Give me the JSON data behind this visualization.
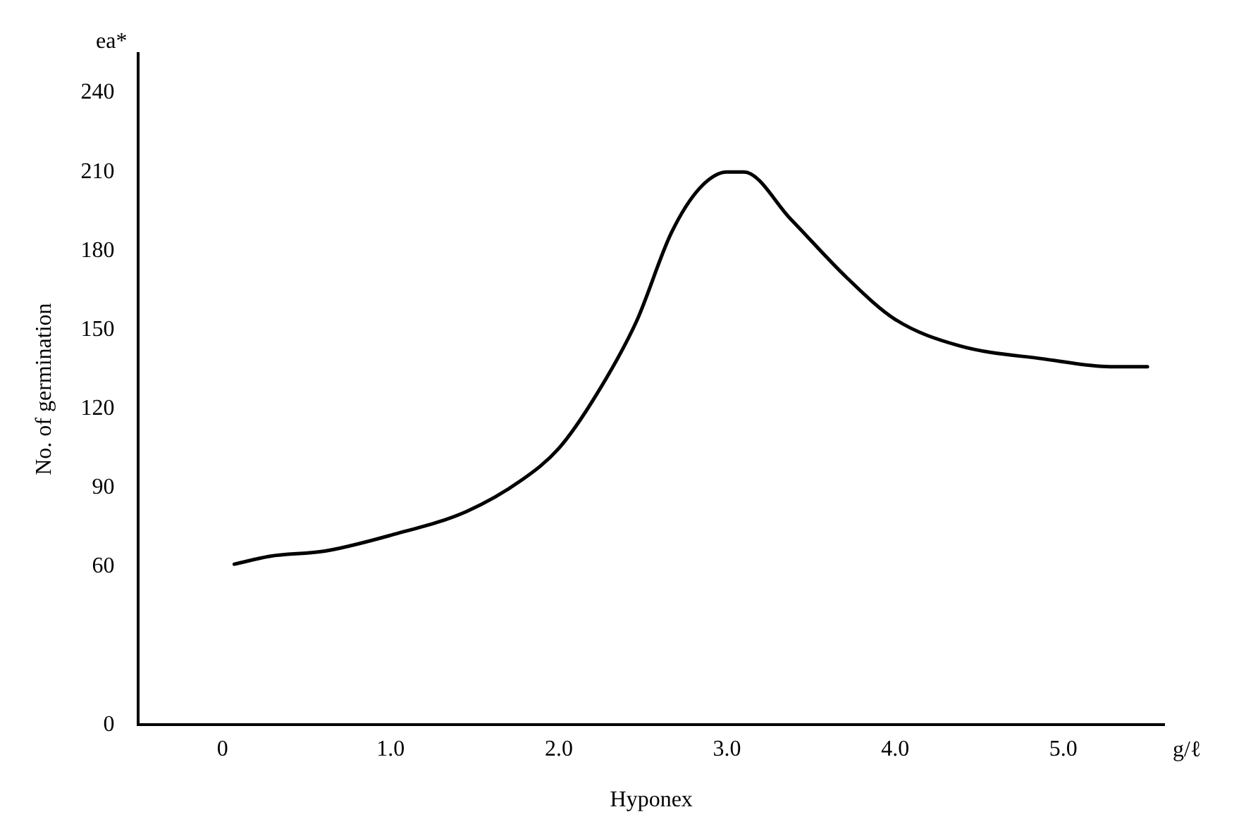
{
  "chart_data": {
    "type": "line",
    "xlabel": "Hyponex",
    "ylabel": "No. of germination",
    "annotations": [
      "ea*",
      "g/ℓ"
    ],
    "x": [
      0.07,
      0.28,
      0.61,
      1.0,
      1.45,
      1.78,
      2.0,
      2.21,
      2.46,
      2.67,
      2.84,
      3.0,
      3.1,
      3.38,
      3.71,
      4.0,
      4.38,
      4.88,
      5.3,
      5.5
    ],
    "series": [
      {
        "color": "#000000",
        "values": [
          61,
          64,
          66,
          72,
          81,
          93,
          105,
          124,
          153,
          187,
          204,
          210,
          210,
          192,
          170,
          154,
          144,
          139,
          136,
          136
        ]
      }
    ],
    "xlim": [
      -0.5,
      5.6
    ],
    "xticks": [
      0,
      {
        "value": 1,
        "label": "1.0"
      },
      {
        "value": 2,
        "label": "2.0"
      },
      {
        "value": 3,
        "label": "3.0"
      },
      {
        "value": 4,
        "label": "4.0"
      },
      {
        "value": 5,
        "label": "5.0"
      }
    ],
    "ylim": [
      0,
      255
    ],
    "yticks": [
      0,
      60,
      90,
      120,
      150,
      180,
      210,
      240
    ],
    "grid": false,
    "legend": false,
    "marker": "none",
    "line_style": "solid"
  }
}
